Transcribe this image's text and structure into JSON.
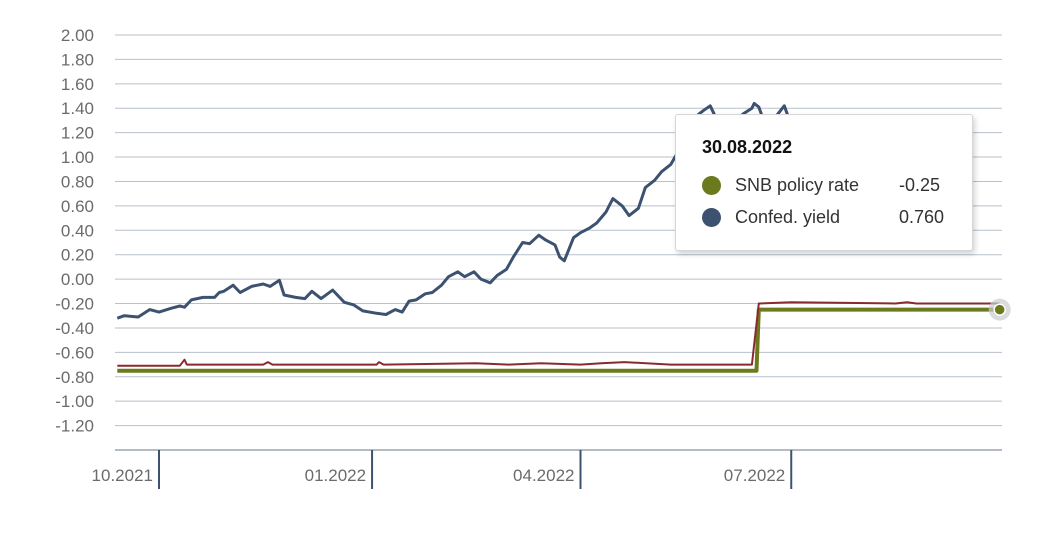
{
  "chart_data": {
    "type": "line",
    "ylim": [
      -1.4,
      2.0
    ],
    "yticks": [
      "2.00",
      "1.80",
      "1.60",
      "1.40",
      "1.20",
      "1.00",
      "0.80",
      "0.60",
      "0.40",
      "0.20",
      "0.00",
      "-0.20",
      "-0.40",
      "-0.60",
      "-0.80",
      "-1.00",
      "-1.20"
    ],
    "xticks": [
      {
        "label": "10.2021",
        "date": "2021-10-01"
      },
      {
        "label": "01.2022",
        "date": "2022-01-01"
      },
      {
        "label": "04.2022",
        "date": "2022-04-01"
      },
      {
        "label": "07.2022",
        "date": "2022-07-01"
      }
    ],
    "xrange": [
      "2021-09-12",
      "2022-09-30"
    ],
    "grid": true,
    "legend": "none",
    "series": [
      {
        "name": "SNB policy rate",
        "color": "#6b7a1d",
        "step": true,
        "points": [
          [
            "2021-09-13",
            -0.75
          ],
          [
            "2022-06-16",
            -0.75
          ],
          [
            "2022-06-17",
            -0.25
          ],
          [
            "2022-09-29",
            -0.25
          ]
        ]
      },
      {
        "name": "",
        "color": "#8b2a2e",
        "points": [
          [
            "2021-09-13",
            -0.71
          ],
          [
            "2021-10-10",
            -0.71
          ],
          [
            "2021-10-12",
            -0.66
          ],
          [
            "2021-10-13",
            -0.7
          ],
          [
            "2021-11-15",
            -0.7
          ],
          [
            "2021-11-17",
            -0.68
          ],
          [
            "2021-11-19",
            -0.7
          ],
          [
            "2022-01-03",
            -0.7
          ],
          [
            "2022-01-04",
            -0.68
          ],
          [
            "2022-01-06",
            -0.7
          ],
          [
            "2022-02-15",
            -0.69
          ],
          [
            "2022-03-01",
            -0.7
          ],
          [
            "2022-03-15",
            -0.69
          ],
          [
            "2022-04-01",
            -0.7
          ],
          [
            "2022-04-10",
            -0.69
          ],
          [
            "2022-04-20",
            -0.68
          ],
          [
            "2022-05-10",
            -0.7
          ],
          [
            "2022-06-14",
            -0.7
          ],
          [
            "2022-06-17",
            -0.2
          ],
          [
            "2022-07-01",
            -0.19
          ],
          [
            "2022-08-15",
            -0.2
          ],
          [
            "2022-08-20",
            -0.19
          ],
          [
            "2022-08-24",
            -0.2
          ],
          [
            "2022-09-29",
            -0.2
          ]
        ]
      },
      {
        "name": "Confed. yield",
        "color": "#3d5270",
        "points": [
          [
            "2021-09-13",
            -0.32
          ],
          [
            "2021-09-16",
            -0.3
          ],
          [
            "2021-09-22",
            -0.31
          ],
          [
            "2021-09-27",
            -0.25
          ],
          [
            "2021-10-01",
            -0.27
          ],
          [
            "2021-10-06",
            -0.24
          ],
          [
            "2021-10-10",
            -0.22
          ],
          [
            "2021-10-12",
            -0.23
          ],
          [
            "2021-10-15",
            -0.17
          ],
          [
            "2021-10-20",
            -0.15
          ],
          [
            "2021-10-25",
            -0.15
          ],
          [
            "2021-10-27",
            -0.11
          ],
          [
            "2021-10-29",
            -0.1
          ],
          [
            "2021-11-02",
            -0.05
          ],
          [
            "2021-11-05",
            -0.11
          ],
          [
            "2021-11-10",
            -0.06
          ],
          [
            "2021-11-15",
            -0.04
          ],
          [
            "2021-11-18",
            -0.06
          ],
          [
            "2021-11-22",
            -0.01
          ],
          [
            "2021-11-24",
            -0.13
          ],
          [
            "2021-11-29",
            -0.15
          ],
          [
            "2021-12-03",
            -0.16
          ],
          [
            "2021-12-06",
            -0.1
          ],
          [
            "2021-12-10",
            -0.16
          ],
          [
            "2021-12-15",
            -0.09
          ],
          [
            "2021-12-20",
            -0.19
          ],
          [
            "2021-12-24",
            -0.21
          ],
          [
            "2021-12-28",
            -0.26
          ],
          [
            "2022-01-03",
            -0.28
          ],
          [
            "2022-01-07",
            -0.29
          ],
          [
            "2022-01-11",
            -0.25
          ],
          [
            "2022-01-14",
            -0.27
          ],
          [
            "2022-01-17",
            -0.18
          ],
          [
            "2022-01-20",
            -0.17
          ],
          [
            "2022-01-24",
            -0.12
          ],
          [
            "2022-01-27",
            -0.11
          ],
          [
            "2022-01-31",
            -0.05
          ],
          [
            "2022-02-03",
            0.02
          ],
          [
            "2022-02-07",
            0.06
          ],
          [
            "2022-02-10",
            0.02
          ],
          [
            "2022-02-14",
            0.06
          ],
          [
            "2022-02-17",
            0.0
          ],
          [
            "2022-02-21",
            -0.03
          ],
          [
            "2022-02-24",
            0.03
          ],
          [
            "2022-02-28",
            0.08
          ],
          [
            "2022-03-03",
            0.18
          ],
          [
            "2022-03-07",
            0.3
          ],
          [
            "2022-03-10",
            0.29
          ],
          [
            "2022-03-14",
            0.36
          ],
          [
            "2022-03-17",
            0.32
          ],
          [
            "2022-03-21",
            0.28
          ],
          [
            "2022-03-23",
            0.18
          ],
          [
            "2022-03-25",
            0.15
          ],
          [
            "2022-03-29",
            0.34
          ],
          [
            "2022-04-01",
            0.38
          ],
          [
            "2022-04-05",
            0.42
          ],
          [
            "2022-04-08",
            0.46
          ],
          [
            "2022-04-12",
            0.55
          ],
          [
            "2022-04-15",
            0.66
          ],
          [
            "2022-04-19",
            0.6
          ],
          [
            "2022-04-22",
            0.52
          ],
          [
            "2022-04-26",
            0.58
          ],
          [
            "2022-04-29",
            0.75
          ],
          [
            "2022-05-03",
            0.81
          ],
          [
            "2022-05-06",
            0.88
          ],
          [
            "2022-05-10",
            0.94
          ],
          [
            "2022-05-13",
            1.04
          ],
          [
            "2022-05-17",
            1.2
          ],
          [
            "2022-05-20",
            1.32
          ],
          [
            "2022-05-24",
            1.38
          ],
          [
            "2022-05-27",
            1.42
          ],
          [
            "2022-05-31",
            1.26
          ],
          [
            "2022-06-03",
            1.34
          ],
          [
            "2022-06-07",
            1.28
          ],
          [
            "2022-06-10",
            1.35
          ],
          [
            "2022-06-14",
            1.4
          ],
          [
            "2022-06-15",
            1.44
          ],
          [
            "2022-06-17",
            1.41
          ],
          [
            "2022-06-20",
            1.25
          ],
          [
            "2022-06-23",
            1.3
          ],
          [
            "2022-06-28",
            1.42
          ],
          [
            "2022-07-04",
            1.1
          ],
          [
            "2022-07-11",
            0.95
          ],
          [
            "2022-07-18",
            0.88
          ],
          [
            "2022-07-25",
            0.8
          ],
          [
            "2022-08-01",
            0.72
          ],
          [
            "2022-08-08",
            0.7
          ],
          [
            "2022-08-15",
            0.65
          ],
          [
            "2022-08-22",
            0.7
          ],
          [
            "2022-08-25",
            0.64
          ],
          [
            "2022-08-27",
            0.8
          ],
          [
            "2022-08-29",
            0.88
          ],
          [
            "2022-08-30",
            0.76
          ]
        ]
      }
    ]
  },
  "tooltip": {
    "date": "30.08.2022",
    "rows": [
      {
        "name": "SNB policy rate",
        "value": "-0.25",
        "color": "#6b7a1d"
      },
      {
        "name": "Confed. yield",
        "value": "0.760",
        "color": "#3d5270"
      }
    ]
  }
}
